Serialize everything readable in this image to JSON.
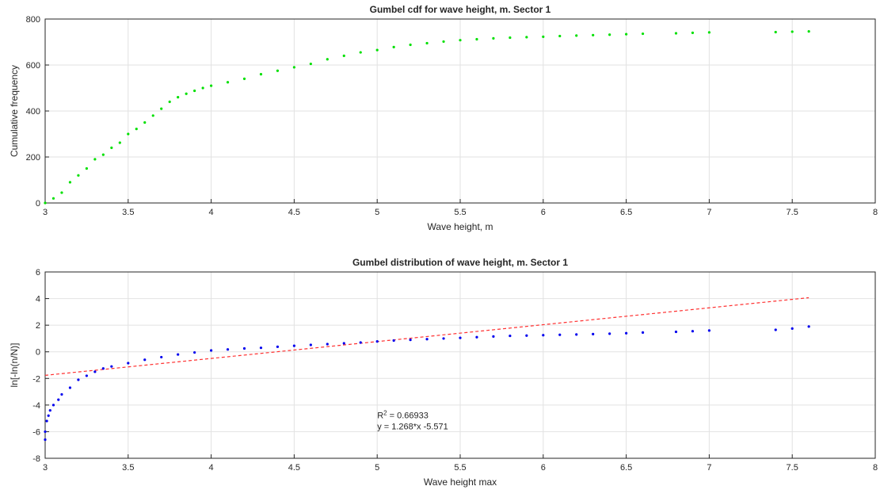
{
  "chart_data": [
    {
      "type": "scatter",
      "title": "Gumbel cdf for wave height, m. Sector 1",
      "xlabel": "Wave height, m",
      "ylabel": "Cumulative frequency",
      "xlim": [
        3,
        8
      ],
      "ylim": [
        0,
        800
      ],
      "xticks": [
        "3",
        "3.5",
        "4",
        "4.5",
        "5",
        "5.5",
        "6",
        "6.5",
        "7",
        "7.5",
        "8"
      ],
      "yticks": [
        "0",
        "200",
        "400",
        "600",
        "800"
      ],
      "grid": true,
      "series": [
        {
          "color": "#00e000",
          "x": [
            3.0,
            3.05,
            3.1,
            3.15,
            3.2,
            3.25,
            3.3,
            3.35,
            3.4,
            3.45,
            3.5,
            3.55,
            3.6,
            3.65,
            3.7,
            3.75,
            3.8,
            3.85,
            3.9,
            3.95,
            4.0,
            4.1,
            4.2,
            4.3,
            4.4,
            4.5,
            4.6,
            4.7,
            4.8,
            4.9,
            5.0,
            5.1,
            5.2,
            5.3,
            5.4,
            5.5,
            5.6,
            5.7,
            5.8,
            5.9,
            6.0,
            6.1,
            6.2,
            6.3,
            6.4,
            6.5,
            6.6,
            6.8,
            6.9,
            7.0,
            7.4,
            7.5,
            7.6
          ],
          "y": [
            0,
            20,
            45,
            90,
            120,
            150,
            190,
            210,
            240,
            262,
            300,
            322,
            350,
            380,
            410,
            440,
            460,
            475,
            488,
            500,
            510,
            525,
            540,
            560,
            575,
            590,
            605,
            625,
            640,
            655,
            665,
            678,
            688,
            695,
            702,
            708,
            712,
            716,
            719,
            721,
            723,
            726,
            728,
            730,
            732,
            734,
            736,
            738,
            740,
            742,
            743,
            745,
            746
          ]
        }
      ]
    },
    {
      "type": "scatter",
      "title": "Gumbel distribution of wave height, m. Sector 1",
      "xlabel": "Wave height max",
      "ylabel": "ln[-ln(n/N)]",
      "xlim": [
        3,
        8
      ],
      "ylim": [
        -8,
        6
      ],
      "xticks": [
        "3",
        "3.5",
        "4",
        "4.5",
        "5",
        "5.5",
        "6",
        "6.5",
        "7",
        "7.5",
        "8"
      ],
      "yticks": [
        "-8",
        "-6",
        "-4",
        "-2",
        "0",
        "2",
        "4",
        "6"
      ],
      "grid": true,
      "annotation": {
        "r2_prefix": "R",
        "r2_sup": "2",
        "r2_value": " = 0.66933",
        "equation": "y = 1.268*x -5.571",
        "x": 5.0,
        "y": -5.0
      },
      "fit_line": {
        "slope": 1.268,
        "intercept": -5.571,
        "x_range": [
          3.0,
          7.6
        ],
        "color": "#ff3030"
      },
      "series": [
        {
          "color": "#0000ee",
          "x": [
            3.0,
            3.0,
            3.01,
            3.02,
            3.03,
            3.05,
            3.08,
            3.1,
            3.15,
            3.2,
            3.25,
            3.3,
            3.35,
            3.4,
            3.5,
            3.6,
            3.7,
            3.8,
            3.9,
            4.0,
            4.1,
            4.2,
            4.3,
            4.4,
            4.5,
            4.6,
            4.7,
            4.8,
            4.9,
            5.0,
            5.1,
            5.2,
            5.3,
            5.4,
            5.5,
            5.6,
            5.7,
            5.8,
            5.9,
            6.0,
            6.1,
            6.2,
            6.3,
            6.4,
            6.5,
            6.6,
            6.8,
            6.9,
            7.0,
            7.4,
            7.5,
            7.6
          ],
          "y": [
            -6.6,
            -6.0,
            -5.2,
            -4.8,
            -4.4,
            -4.0,
            -3.6,
            -3.2,
            -2.7,
            -2.1,
            -1.8,
            -1.5,
            -1.25,
            -1.1,
            -0.85,
            -0.6,
            -0.4,
            -0.2,
            -0.05,
            0.1,
            0.18,
            0.25,
            0.3,
            0.38,
            0.45,
            0.52,
            0.58,
            0.64,
            0.7,
            0.78,
            0.85,
            0.9,
            0.95,
            1.0,
            1.05,
            1.1,
            1.15,
            1.2,
            1.22,
            1.25,
            1.28,
            1.3,
            1.33,
            1.36,
            1.4,
            1.45,
            1.5,
            1.55,
            1.6,
            1.65,
            1.75,
            1.9
          ]
        }
      ]
    }
  ]
}
